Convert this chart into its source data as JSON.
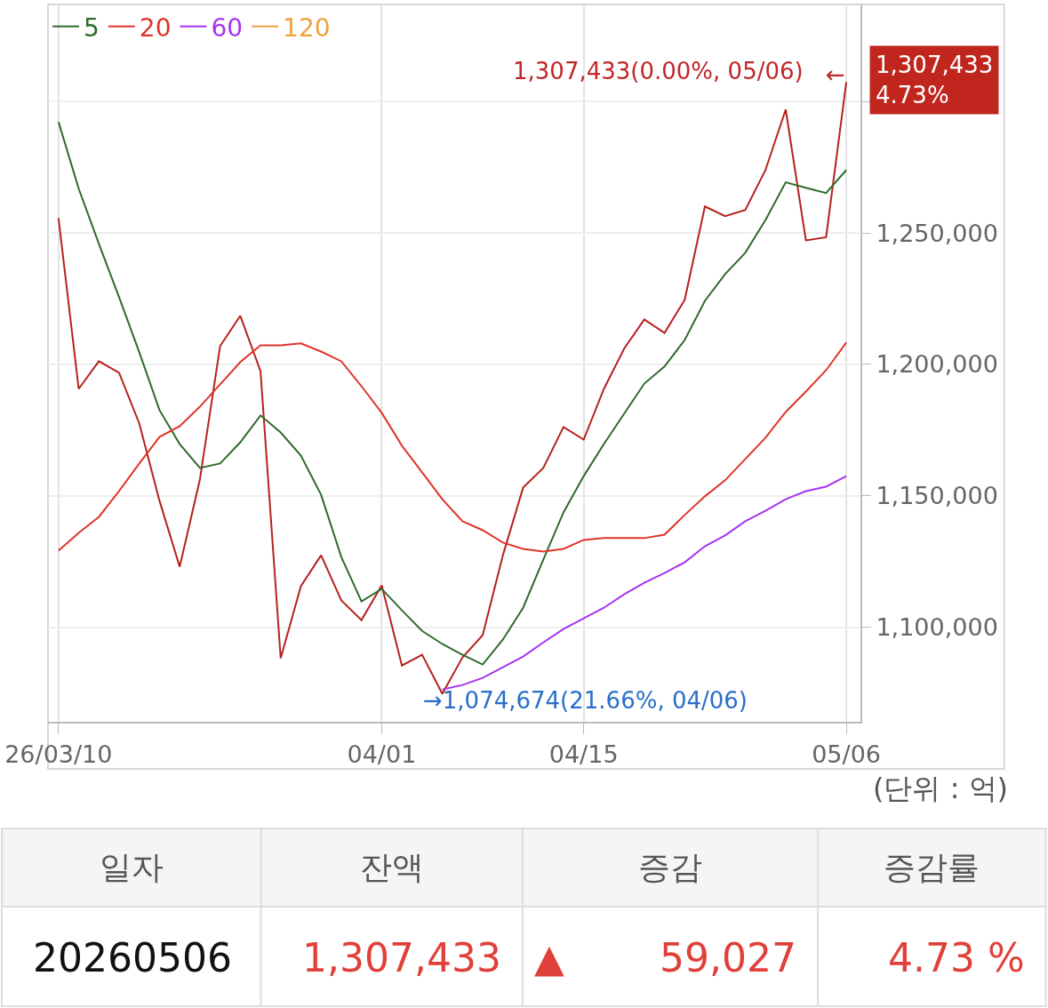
{
  "chart_data": {
    "type": "line",
    "categories": [
      "26/03/10",
      null,
      null,
      null,
      null,
      null,
      null,
      null,
      null,
      null,
      null,
      null,
      null,
      null,
      null,
      null,
      "04/01",
      null,
      null,
      null,
      null,
      null,
      null,
      null,
      null,
      null,
      "04/15",
      null,
      null,
      null,
      null,
      null,
      null,
      null,
      null,
      null,
      null,
      null,
      null,
      "05/06"
    ],
    "series": [
      {
        "color": "#b5221c",
        "values": [
          1255700,
          1190700,
          1201200,
          1196800,
          1177500,
          1148100,
          1123000,
          1156200,
          1207000,
          1218500,
          1197500,
          1088200,
          1115600,
          1127400,
          1110200,
          1102700,
          1115900,
          1085400,
          1089500,
          1074674,
          1088500,
          1097000,
          1127400,
          1153100,
          1160600,
          1176200,
          1171400,
          1190700,
          1206000,
          1217100,
          1212000,
          1224600,
          1260100,
          1256400,
          1258800,
          1274000,
          1297000,
          1247200,
          1248400,
          1307433
        ]
      },
      {
        "name": "5",
        "color": "#2e6b2a",
        "values": [
          1292300,
          1266900,
          1245900,
          1225600,
          1204600,
          1182600,
          1169700,
          1160600,
          1162300,
          1170400,
          1180600,
          1174100,
          1165300,
          1150400,
          1126700,
          1109800,
          1114600,
          1106400,
          1098600,
          1093600,
          1089500,
          1085800,
          1095300,
          1107400,
          1125700,
          1143700,
          1157500,
          1169700,
          1181200,
          1192700,
          1199200,
          1209300,
          1224200,
          1234400,
          1242500,
          1255000,
          1269300,
          1267200,
          1265200,
          1274000
        ]
      },
      {
        "name": "20",
        "color": "#e0342c",
        "values": [
          1129100,
          1135900,
          1142000,
          1151800,
          1162300,
          1172400,
          1176500,
          1183900,
          1192400,
          1200900,
          1207300,
          1207300,
          1208000,
          1204900,
          1201200,
          1191700,
          1181600,
          1169100,
          1158900,
          1148700,
          1140300,
          1136900,
          1132200,
          1129800,
          1128800,
          1129800,
          1133200,
          1133900,
          1133900,
          1133900,
          1135200,
          1142700,
          1149800,
          1155900,
          1164000,
          1172100,
          1181900,
          1189700,
          1197800,
          1208300
        ]
      },
      {
        "name": "60",
        "color": "#a633f0",
        "values": [
          null,
          null,
          null,
          null,
          null,
          null,
          null,
          null,
          null,
          null,
          null,
          null,
          null,
          null,
          null,
          null,
          null,
          null,
          null,
          1076300,
          1078000,
          1080700,
          1084800,
          1088800,
          1094200,
          1099300,
          1103400,
          1107400,
          1112500,
          1116900,
          1120600,
          1124700,
          1130800,
          1134900,
          1140300,
          1144300,
          1148700,
          1151800,
          1153500,
          1157500
        ]
      },
      {
        "name": "120",
        "color": "#f0a03c",
        "values": [
          null,
          null,
          null,
          null,
          null,
          null,
          null,
          null,
          null,
          null,
          null,
          null,
          null,
          null,
          null,
          null,
          null,
          null,
          null,
          null,
          null,
          null,
          null,
          null,
          null,
          null,
          null,
          null,
          null,
          null,
          null,
          null,
          null,
          null,
          null,
          null,
          null,
          null,
          null,
          null
        ]
      }
    ],
    "ylim": [
      1064000,
      1337000
    ],
    "yticks": [
      {
        "value": 1100000,
        "label": "1,100,000"
      },
      {
        "value": 1150000,
        "label": "1,150,000"
      },
      {
        "value": 1200000,
        "label": "1,200,000"
      },
      {
        "value": 1250000,
        "label": "1,250,000"
      },
      {
        "value": 1300000,
        "label": null
      }
    ],
    "grid": true,
    "legend": "top left",
    "marker": "none",
    "line_style": "solid",
    "annotations": [
      "1,307,433(0.00%, 05/06)",
      "←",
      "→1,074,674(21.66%, 04/06)",
      "1,307,433\n4.73%",
      "(단위 : 억)",
      "일자",
      "잔액",
      "증감",
      "증감률",
      "20260506",
      "1,307,433",
      "▲",
      "59,027",
      "4.73 %"
    ]
  }
}
